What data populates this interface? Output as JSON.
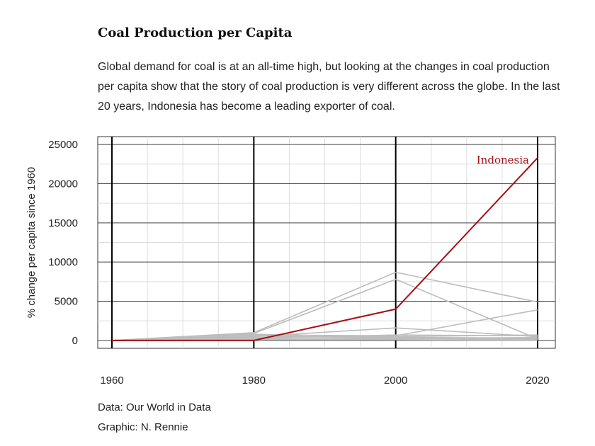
{
  "title": "Coal Production per Capita",
  "subtitle": "Global demand for coal is at an all-time high, but looking at the changes in coal production per capita show that the story of coal production is very different across the globe. In the last 20 years, Indonesia has become a leading exporter of coal.",
  "caption": {
    "source": "Data: Our World in Data",
    "graphic": "Graphic: N. Rennie"
  },
  "colors": {
    "highlight": "#a50f15",
    "others": "#bdbdbd",
    "major_grid": "#444444",
    "minor_grid": "#dddddd"
  },
  "chart_data": {
    "type": "line",
    "title": "Coal Production per Capita",
    "xlabel": "",
    "ylabel": "% change per capita since 1960",
    "x": [
      1960,
      1980,
      2000,
      2020
    ],
    "xlim": [
      1958,
      2022.5
    ],
    "ylim": [
      -1000,
      26000
    ],
    "x_ticks": [
      1960,
      1980,
      2000,
      2020
    ],
    "y_ticks": [
      0,
      5000,
      10000,
      15000,
      20000,
      25000
    ],
    "grid": true,
    "highlight_series": "Indonesia",
    "series": [
      {
        "name": "Indonesia",
        "values": [
          0,
          0,
          4000,
          23300
        ],
        "highlight": true,
        "label": "Indonesia"
      },
      {
        "values": [
          0,
          1000,
          8700,
          4900
        ]
      },
      {
        "values": [
          0,
          900,
          7800,
          200
        ]
      },
      {
        "values": [
          0,
          700,
          600,
          3900
        ]
      },
      {
        "values": [
          0,
          500,
          1600,
          500
        ]
      },
      {
        "values": [
          0,
          800,
          400,
          300
        ]
      },
      {
        "values": [
          0,
          300,
          700,
          600
        ]
      },
      {
        "values": [
          0,
          200,
          300,
          100
        ]
      },
      {
        "values": [
          0,
          400,
          500,
          700
        ]
      },
      {
        "values": [
          0,
          100,
          200,
          400
        ]
      },
      {
        "values": [
          0,
          600,
          300,
          200
        ]
      },
      {
        "values": [
          0,
          200,
          100,
          50
        ]
      }
    ]
  }
}
